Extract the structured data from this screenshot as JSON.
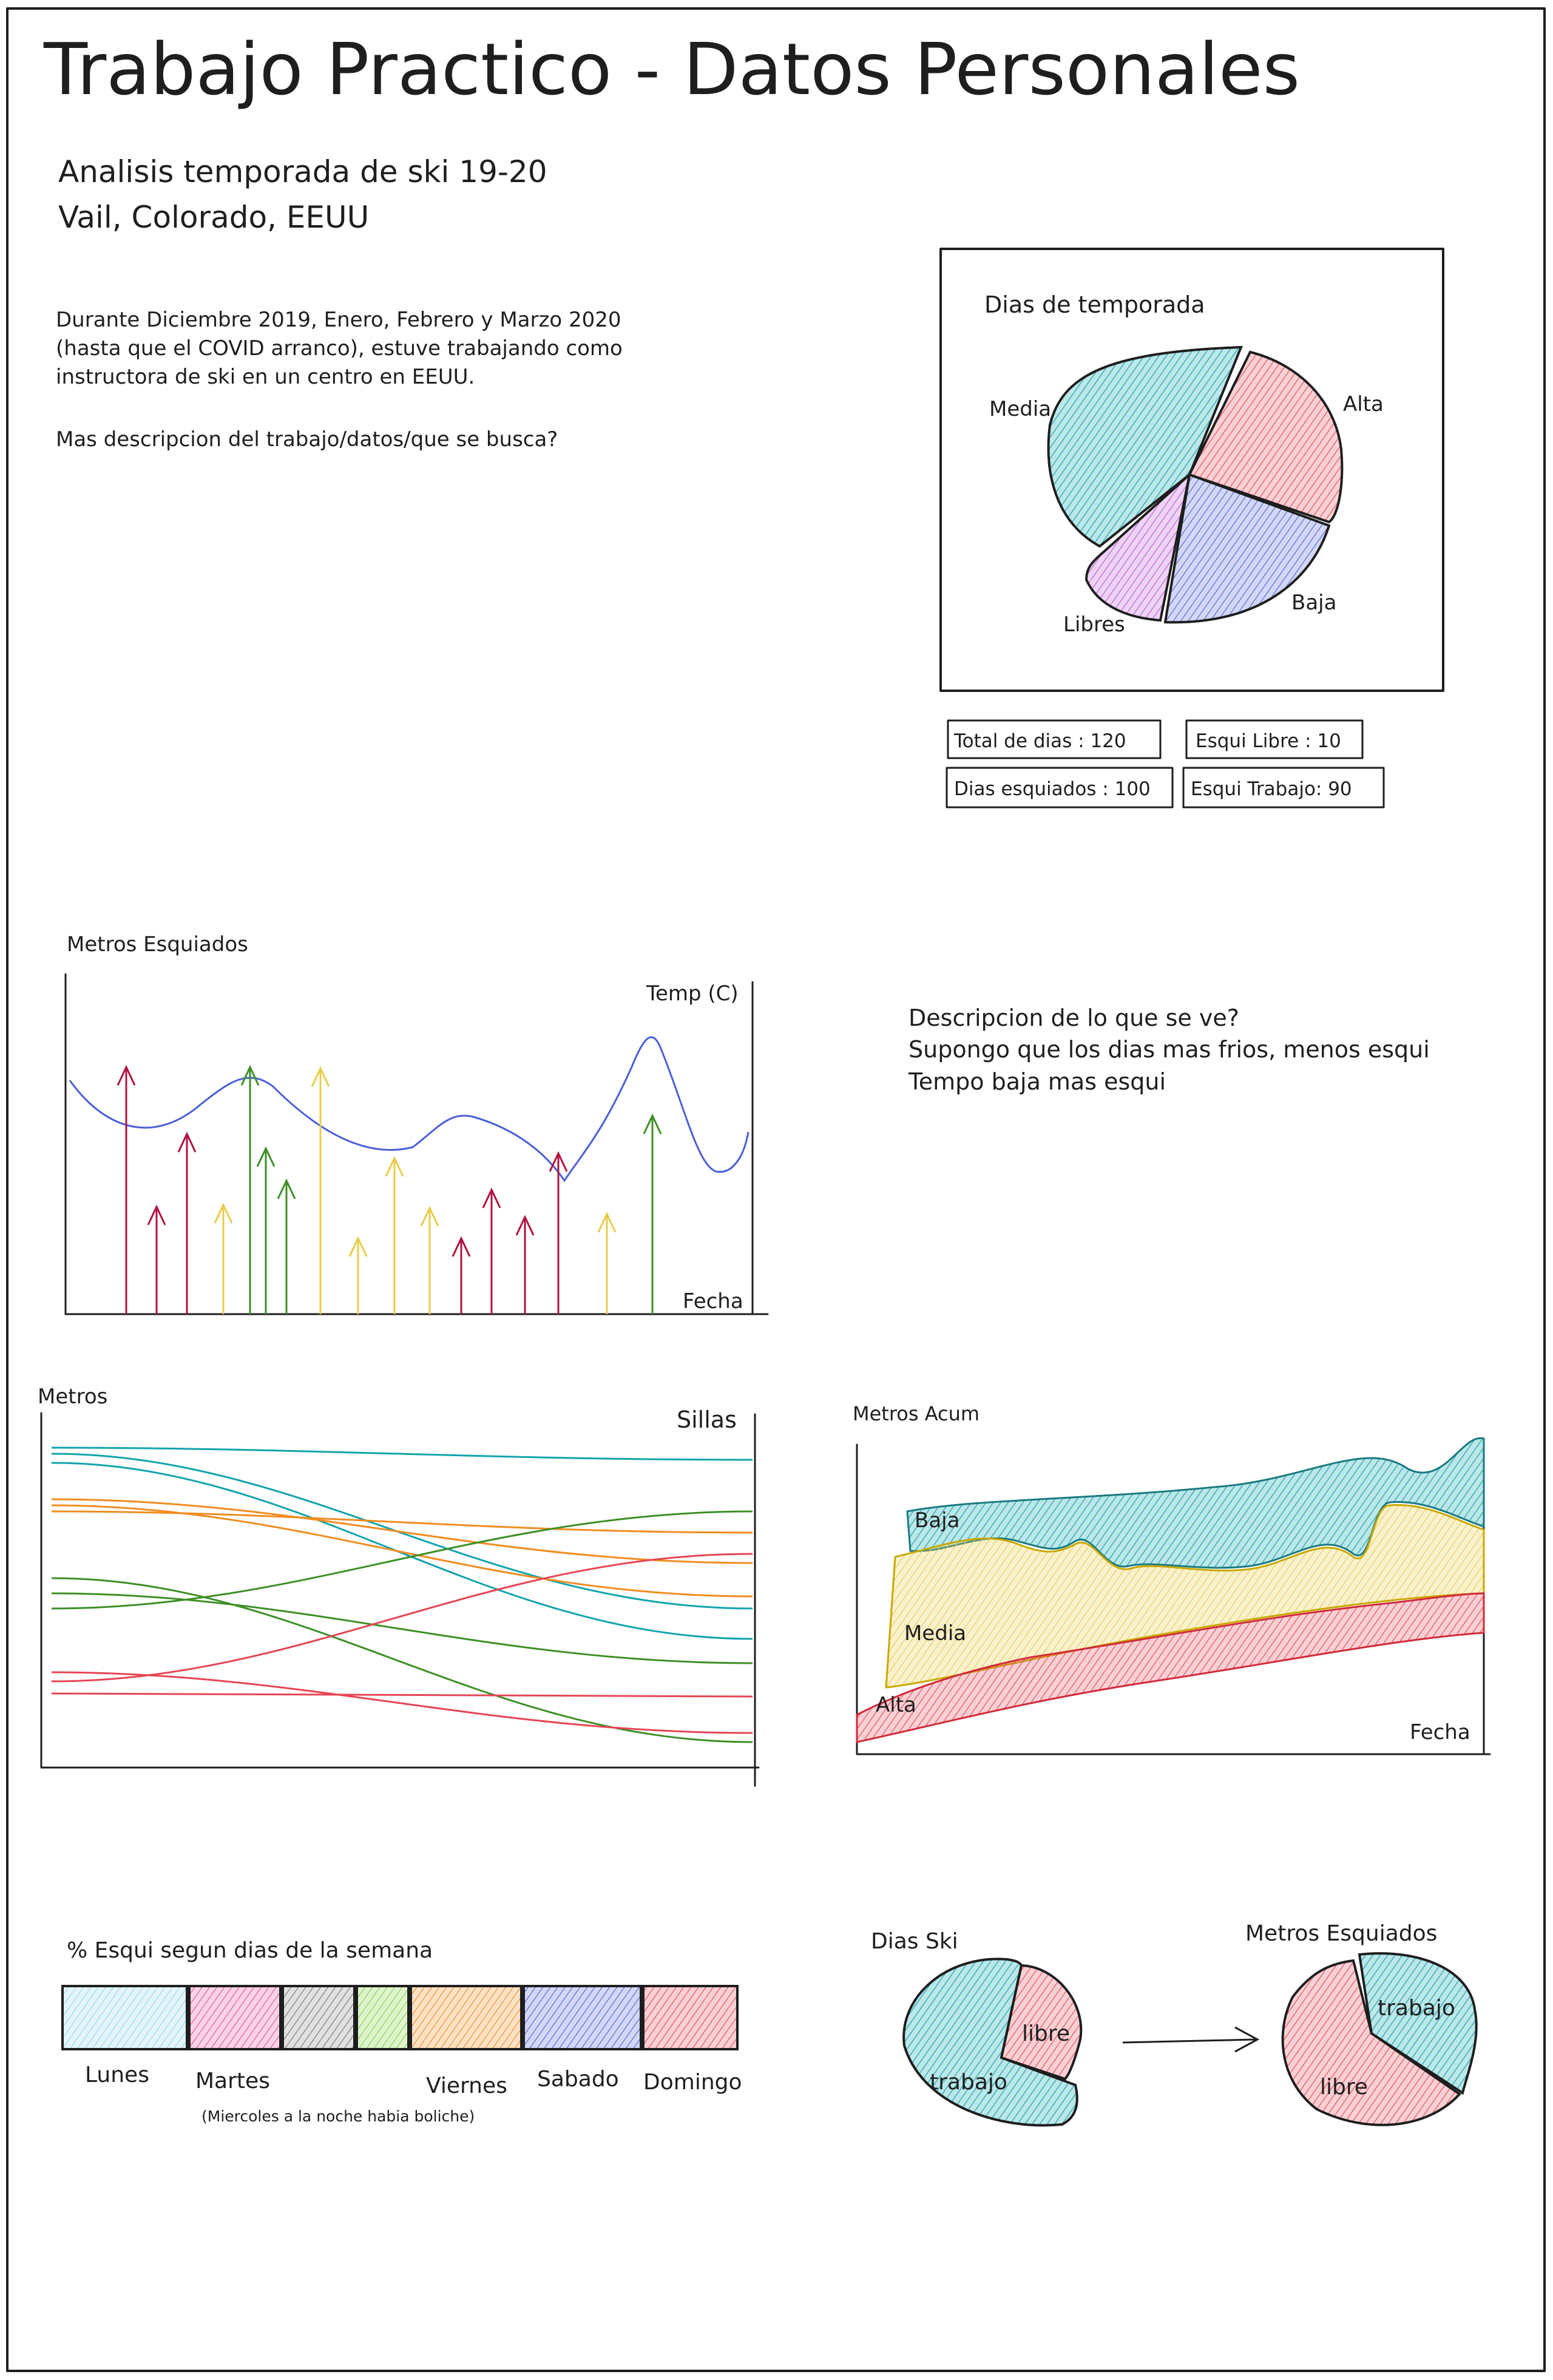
{
  "title": "Trabajo Practico - Datos Personales",
  "subtitle_line1": "Analisis temporada de ski 19-20",
  "subtitle_line2": "Vail, Colorado, EEUU",
  "intro_line1": "Durante Diciembre 2019, Enero, Febrero y Marzo 2020",
  "intro_line2": "(hasta que el COVID arranco), estuve trabajando como",
  "intro_line3": "instructora de ski en un centro en EEUU.",
  "intro_line4": "Mas descripcion del trabajo/datos/que se busca?",
  "colors": {
    "teal": "#12a4ad",
    "red": "#e64553",
    "blue": "#4b5fd9",
    "purple": "#b855d9",
    "yellow": "#e8cc4a",
    "green": "#3d8f26",
    "orange": "#f08c1e",
    "pink": "#e64f9b",
    "lightblue": "#8fd3f0",
    "gray": "#6b6b6b",
    "lime": "#7ecf3a",
    "maroon": "#b0123e"
  },
  "season_pie": {
    "title": "Dias de temporada",
    "labels": [
      "Media",
      "Alta",
      "Baja",
      "Libres"
    ]
  },
  "stats": [
    "Total de dias : 120",
    "Esqui Libre : 10",
    "Dias esquiados : 100",
    "Esqui Trabajo: 90"
  ],
  "meters_chart": {
    "title": "Metros Esquiados",
    "temp_label": "Temp (C)",
    "x_label": "Fecha"
  },
  "meters_description": {
    "line1": "Descripcion de lo que se ve?",
    "line2": "Supongo que los dias mas frios, menos esqui",
    "line3": "Tempo baja mas esqui"
  },
  "slope_chart": {
    "left_label": "Metros",
    "right_label": "Sillas"
  },
  "area_chart": {
    "title": "Metros Acum",
    "labels": [
      "Baja",
      "Media",
      "Alta"
    ],
    "x_label": "Fecha"
  },
  "weekday_bar": {
    "title": "% Esqui segun dias de la semana",
    "labels": [
      "Lunes",
      "Martes",
      "Viernes",
      "Sabado",
      "Domingo"
    ],
    "note": "(Miercoles a la noche habia boliche)"
  },
  "ski_pie_1": {
    "title": "Dias Ski",
    "labels": [
      "libre",
      "trabajo"
    ]
  },
  "ski_pie_2": {
    "title": "Metros Esquiados",
    "labels": [
      "trabajo",
      "libre"
    ]
  }
}
